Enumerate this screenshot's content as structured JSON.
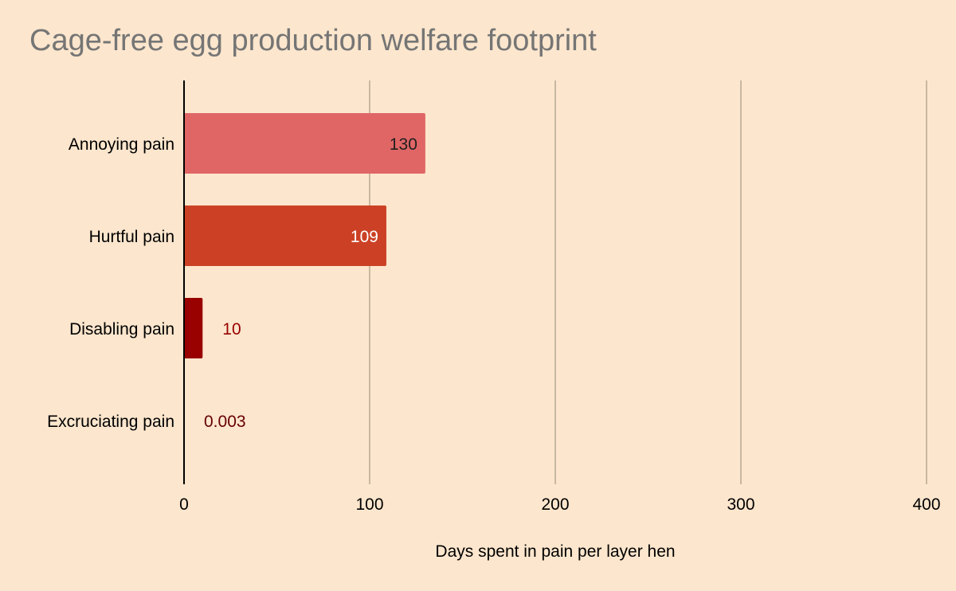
{
  "chart_data": {
    "type": "bar",
    "orientation": "horizontal",
    "title": "Cage-free egg production welfare footprint",
    "xlabel": "Days spent in pain per layer hen",
    "ylabel": "",
    "categories": [
      "Annoying pain",
      "Hurtful pain",
      "Disabling pain",
      "Excruciating pain"
    ],
    "values": [
      130,
      109,
      10,
      0.003
    ],
    "value_labels": [
      "130",
      "109",
      "10",
      "0.003"
    ],
    "bar_colors": [
      "#e06666",
      "#cc4125",
      "#990000",
      "#660000"
    ],
    "label_colors": [
      "#1f1f1f",
      "#ffffff",
      "#990000",
      "#660000"
    ],
    "label_inside": [
      true,
      true,
      false,
      false
    ],
    "xlim": [
      0,
      400
    ],
    "xticks": [
      0,
      100,
      200,
      300,
      400
    ],
    "xtick_labels": [
      "0",
      "100",
      "200",
      "300",
      "400"
    ],
    "grid": true,
    "legend": "none"
  },
  "colors": {
    "background": "#fce6cd",
    "gridline": "#c8b8a2",
    "axis": "#000000",
    "title": "#757575",
    "text": "#000000"
  }
}
